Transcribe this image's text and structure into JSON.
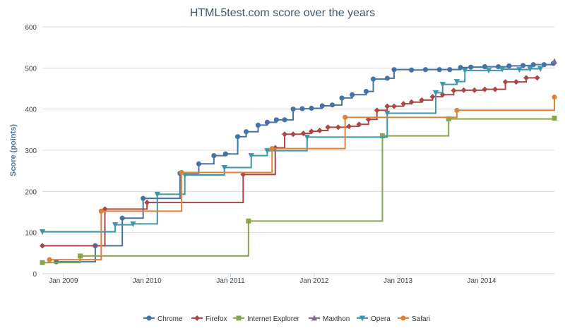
{
  "chart_data": {
    "type": "line",
    "step": true,
    "title": "HTML5test.com score over the years",
    "ylabel": "Score (points)",
    "xlabel": "",
    "ylim": [
      0,
      600
    ],
    "yticks": [
      "0",
      "100",
      "200",
      "300",
      "400",
      "500",
      "600"
    ],
    "xlim": [
      "2008-10-01",
      "2014-11-15"
    ],
    "xticks": [
      {
        "date": "2009-01-01",
        "label": "Jan 2009"
      },
      {
        "date": "2010-01-01",
        "label": "Jan 2010"
      },
      {
        "date": "2011-01-01",
        "label": "Jan 2011"
      },
      {
        "date": "2012-01-01",
        "label": "Jan 2012"
      },
      {
        "date": "2013-01-01",
        "label": "Jan 2013"
      },
      {
        "date": "2014-01-01",
        "label": "Jan 2014"
      }
    ],
    "grid": true,
    "legend_position": "bottom",
    "series": [
      {
        "name": "Chrome",
        "color": "#4572a7",
        "marker": "circle",
        "points": [
          [
            "2008-12-01",
            29
          ],
          [
            "2009-05-20",
            68
          ],
          [
            "2009-09-15",
            135
          ],
          [
            "2009-12-15",
            183
          ],
          [
            "2010-05-25",
            244
          ],
          [
            "2010-08-15",
            267
          ],
          [
            "2010-10-20",
            287
          ],
          [
            "2010-12-10",
            291
          ],
          [
            "2011-02-01",
            333
          ],
          [
            "2011-03-10",
            345
          ],
          [
            "2011-05-01",
            361
          ],
          [
            "2011-06-10",
            368
          ],
          [
            "2011-07-20",
            374
          ],
          [
            "2011-08-25",
            374
          ],
          [
            "2011-10-01",
            400
          ],
          [
            "2011-11-10",
            401
          ],
          [
            "2011-12-20",
            402
          ],
          [
            "2012-02-05",
            408
          ],
          [
            "2012-03-20",
            410
          ],
          [
            "2012-05-01",
            427
          ],
          [
            "2012-06-15",
            435
          ],
          [
            "2012-08-15",
            443
          ],
          [
            "2012-09-15",
            473
          ],
          [
            "2012-11-15",
            475
          ],
          [
            "2012-12-15",
            496
          ],
          [
            "2013-03-01",
            495
          ],
          [
            "2013-05-01",
            496
          ],
          [
            "2013-07-01",
            496
          ],
          [
            "2013-08-15",
            496
          ],
          [
            "2013-10-01",
            501
          ],
          [
            "2013-11-15",
            502
          ],
          [
            "2014-01-15",
            503
          ],
          [
            "2014-03-15",
            503
          ],
          [
            "2014-05-01",
            505
          ],
          [
            "2014-07-01",
            506
          ],
          [
            "2014-08-15",
            508
          ],
          [
            "2014-10-01",
            508
          ],
          [
            "2014-11-10",
            511
          ]
        ]
      },
      {
        "name": "Firefox",
        "color": "#aa4643",
        "marker": "diamond",
        "points": [
          [
            "2008-10-01",
            68
          ],
          [
            "2009-07-01",
            157
          ],
          [
            "2010-01-01",
            173
          ],
          [
            "2011-02-25",
            241
          ],
          [
            "2011-07-15",
            306
          ],
          [
            "2011-08-25",
            339
          ],
          [
            "2011-10-01",
            339
          ],
          [
            "2011-11-15",
            341
          ],
          [
            "2011-12-20",
            346
          ],
          [
            "2012-01-25",
            348
          ],
          [
            "2012-03-01",
            356
          ],
          [
            "2012-04-15",
            356
          ],
          [
            "2012-06-01",
            358
          ],
          [
            "2012-07-15",
            363
          ],
          [
            "2012-08-25",
            375
          ],
          [
            "2012-10-01",
            397
          ],
          [
            "2012-11-15",
            407
          ],
          [
            "2012-12-15",
            407
          ],
          [
            "2013-01-25",
            413
          ],
          [
            "2013-03-01",
            417
          ],
          [
            "2013-04-15",
            422
          ],
          [
            "2013-06-01",
            430
          ],
          [
            "2013-07-15",
            435
          ],
          [
            "2013-09-01",
            445
          ],
          [
            "2013-10-15",
            446
          ],
          [
            "2013-12-01",
            446
          ],
          [
            "2014-01-15",
            448
          ],
          [
            "2014-03-01",
            448
          ],
          [
            "2014-04-15",
            466
          ],
          [
            "2014-06-01",
            466
          ],
          [
            "2014-07-15",
            476
          ],
          [
            "2014-09-01",
            476
          ]
        ]
      },
      {
        "name": "Internet Explorer",
        "color": "#89a54e",
        "marker": "square",
        "points": [
          [
            "2008-10-01",
            27
          ],
          [
            "2009-03-15",
            43
          ],
          [
            "2011-03-20",
            128
          ],
          [
            "2012-10-25",
            335
          ],
          [
            "2013-08-10",
            376
          ],
          [
            "2014-11-15",
            378
          ]
        ]
      },
      {
        "name": "Maxthon",
        "color": "#80699b",
        "marker": "triangle",
        "points": [
          [
            "2014-11-15",
            516
          ]
        ]
      },
      {
        "name": "Opera",
        "color": "#3d96ae",
        "marker": "triangle-down",
        "points": [
          [
            "2008-10-01",
            102
          ],
          [
            "2009-08-15",
            119
          ],
          [
            "2009-11-01",
            121
          ],
          [
            "2010-02-15",
            193
          ],
          [
            "2010-06-15",
            240
          ],
          [
            "2010-12-05",
            258
          ],
          [
            "2011-04-01",
            287
          ],
          [
            "2011-06-10",
            299
          ],
          [
            "2011-12-01",
            332
          ],
          [
            "2012-11-15",
            390
          ],
          [
            "2013-06-15",
            440
          ],
          [
            "2013-07-15",
            460
          ],
          [
            "2013-09-15",
            467
          ],
          [
            "2013-10-20",
            494
          ],
          [
            "2014-02-01",
            494
          ],
          [
            "2014-04-01",
            497
          ],
          [
            "2014-06-15",
            496
          ],
          [
            "2014-08-01",
            498
          ],
          [
            "2014-09-15",
            498
          ]
        ]
      },
      {
        "name": "Safari",
        "color": "#db843d",
        "marker": "circle",
        "points": [
          [
            "2008-11-01",
            34
          ],
          [
            "2009-06-15",
            152
          ],
          [
            "2010-06-01",
            246
          ],
          [
            "2011-07-01",
            304
          ],
          [
            "2012-05-15",
            380
          ],
          [
            "2013-09-15",
            397
          ],
          [
            "2014-11-15",
            429
          ]
        ]
      }
    ]
  }
}
